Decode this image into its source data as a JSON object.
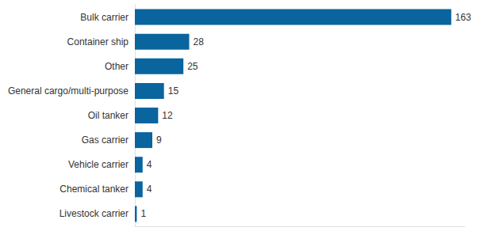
{
  "chart_data": {
    "type": "bar",
    "orientation": "horizontal",
    "categories": [
      "Bulk carrier",
      "Container ship",
      "Other",
      "General cargo/multi-purpose",
      "Oil tanker",
      "Gas carrier",
      "Vehicle carrier",
      "Chemical tanker",
      "Livestock carrier"
    ],
    "values": [
      163,
      28,
      25,
      15,
      12,
      9,
      4,
      4,
      1
    ],
    "color": "#0a649e",
    "xlim": [
      0,
      170
    ],
    "grid": false,
    "data_labels": true,
    "tick_labels": "y"
  }
}
